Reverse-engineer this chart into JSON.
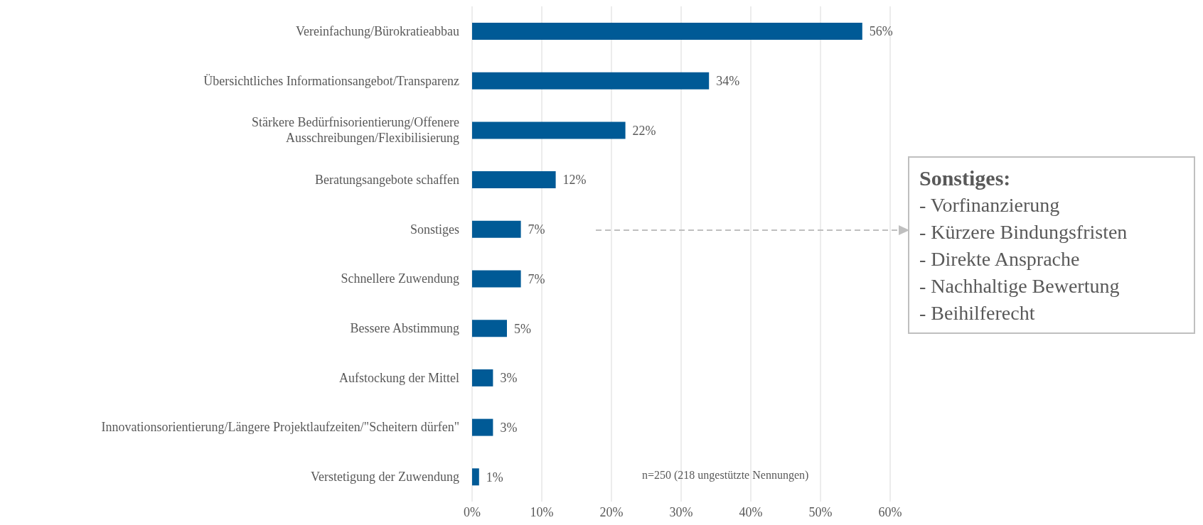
{
  "chart_data": {
    "type": "bar",
    "orientation": "horizontal",
    "categories": [
      "Vereinfachung/Bürokratieabbau",
      "Übersichtliches Informationsangebot/Transparenz",
      "Stärkere Bedürfnisorientierung/Offenere Ausschreibungen/Flexibilisierung",
      "Beratungsangebote schaffen",
      "Sonstiges",
      "Schnellere Zuwendung",
      "Bessere Abstimmung",
      "Aufstockung der Mittel",
      "Innovationsorientierung/Längere Projektlaufzeiten/\"Scheitern dürfen\"",
      "Verstetigung der Zuwendung"
    ],
    "values": [
      56,
      34,
      22,
      12,
      7,
      7,
      5,
      3,
      3,
      1
    ],
    "value_labels": [
      "56%",
      "34%",
      "22%",
      "12%",
      "7%",
      "7%",
      "5%",
      "3%",
      "3%",
      "1%"
    ],
    "color": "#005a96",
    "xlim": [
      0,
      60
    ],
    "xticks": [
      {
        "value": 0,
        "label": "0%"
      },
      {
        "value": 10,
        "label": "10%"
      },
      {
        "value": 20,
        "label": "20%"
      },
      {
        "value": 30,
        "label": "30%"
      },
      {
        "value": 40,
        "label": "40%"
      },
      {
        "value": 50,
        "label": "50%"
      },
      {
        "value": 60,
        "label": "60%"
      }
    ],
    "grid": "x",
    "annotations": [
      "n=250 (218 ungestützte Nennungen)",
      "Sonstiges:",
      "- Vorfinanzierung",
      "- Kürzere Bindungsfristen",
      "- Direkte Ansprache",
      "- Nachhaltige Bewertung",
      "- Beihilferecht"
    ]
  }
}
